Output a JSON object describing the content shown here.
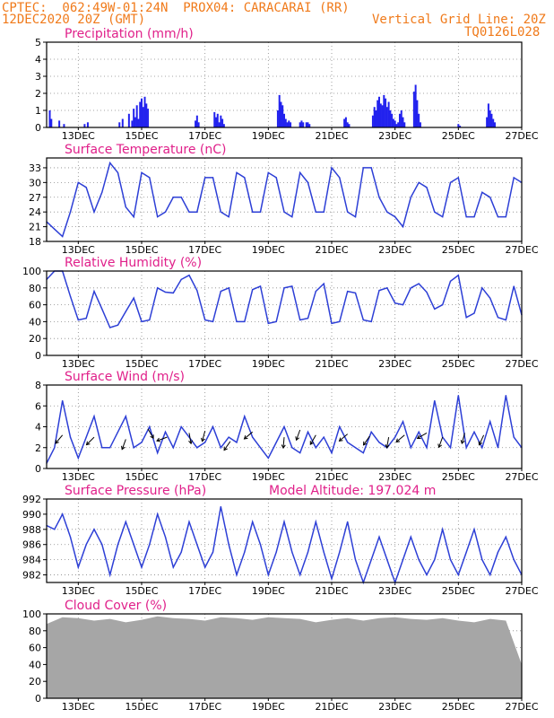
{
  "header": {
    "line1": "CPTEC:  062:49W-01:24N  PROX04: CARACARAI (RR)",
    "line2": "12DEC2020 20Z (GMT)",
    "vgrid": "Vertical Grid Line: 20Z",
    "code": "TQ0126L028",
    "model_altitude": "Model Altitude: 197.024 m"
  },
  "colors": {
    "header": "#f07a1a",
    "title": "#e0208a",
    "line": "#2d3fd6",
    "bar": "#2222ee",
    "cloud": "#a6a6a6",
    "grid": "#888888"
  },
  "chart_data": [
    {
      "id": "precip",
      "type": "bar",
      "title": "Precipitation (mm/h)",
      "ylim": [
        0,
        5
      ],
      "yticks": [
        0,
        1,
        2,
        3,
        4,
        5
      ],
      "xticks": [
        "13DEC",
        "15DEC",
        "17DEC",
        "19DEC",
        "21DEC",
        "23DEC",
        "25DEC",
        "27DEC"
      ],
      "x": [
        0.1,
        0.15,
        0.4,
        0.55,
        1.2,
        1.3,
        2.3,
        2.4,
        2.6,
        2.7,
        2.75,
        2.8,
        2.85,
        2.9,
        2.95,
        3.0,
        3.05,
        3.1,
        3.15,
        3.2,
        4.7,
        4.75,
        4.8,
        5.3,
        5.35,
        5.4,
        5.45,
        5.5,
        5.55,
        5.6,
        7.3,
        7.35,
        7.4,
        7.45,
        7.5,
        7.55,
        7.6,
        7.65,
        7.7,
        8.0,
        8.05,
        8.1,
        8.2,
        8.25,
        8.3,
        9.4,
        9.45,
        9.5,
        9.55,
        10.3,
        10.35,
        10.4,
        10.45,
        10.5,
        10.55,
        10.6,
        10.65,
        10.7,
        10.75,
        10.8,
        10.85,
        10.9,
        10.95,
        11.0,
        11.05,
        11.1,
        11.15,
        11.2,
        11.25,
        11.3,
        11.6,
        11.65,
        11.7,
        11.75,
        11.8,
        13.0,
        13.05,
        13.9,
        13.95,
        14.0,
        14.05,
        14.1,
        14.15
      ],
      "values": [
        1.0,
        0.5,
        0.4,
        0.2,
        0.2,
        0.3,
        0.3,
        0.5,
        0.8,
        0.4,
        1.1,
        0.6,
        1.3,
        0.5,
        1.5,
        1.7,
        1.2,
        1.8,
        1.4,
        1.1,
        0.4,
        0.7,
        0.3,
        0.9,
        0.6,
        0.8,
        0.3,
        0.7,
        0.5,
        0.2,
        1.0,
        1.9,
        1.5,
        1.3,
        0.8,
        0.5,
        0.3,
        0.4,
        0.3,
        0.3,
        0.4,
        0.3,
        0.3,
        0.3,
        0.2,
        0.5,
        0.6,
        0.3,
        0.2,
        0.7,
        1.2,
        1.0,
        1.6,
        1.8,
        1.4,
        1.3,
        1.9,
        1.7,
        1.2,
        1.5,
        1.0,
        0.8,
        0.5,
        0.4,
        0.2,
        0.3,
        0.8,
        1.0,
        0.6,
        0.3,
        2.1,
        2.5,
        1.6,
        0.8,
        0.3,
        0.2,
        0.1,
        0.6,
        1.4,
        1.0,
        0.8,
        0.5,
        0.3
      ]
    },
    {
      "id": "temp",
      "type": "line",
      "title": "Surface Temperature (nC)",
      "ylim": [
        18,
        35
      ],
      "yticks": [
        18,
        21,
        24,
        27,
        30,
        33
      ],
      "xticks": [
        "13DEC",
        "15DEC",
        "17DEC",
        "19DEC",
        "21DEC",
        "23DEC",
        "25DEC",
        "27DEC"
      ],
      "x": [
        0,
        0.25,
        0.5,
        0.75,
        1,
        1.25,
        1.5,
        1.75,
        2,
        2.25,
        2.5,
        2.75,
        3,
        3.25,
        3.5,
        3.75,
        4,
        4.25,
        4.5,
        4.75,
        5,
        5.25,
        5.5,
        5.75,
        6,
        6.25,
        6.5,
        6.75,
        7,
        7.25,
        7.5,
        7.75,
        8,
        8.25,
        8.5,
        8.75,
        9,
        9.25,
        9.5,
        9.75,
        10,
        10.25,
        10.5,
        10.75,
        11,
        11.25,
        11.5,
        11.75,
        12,
        12.25,
        12.5,
        12.75,
        13,
        13.25,
        13.5,
        13.75,
        14,
        14.25,
        14.5,
        14.75,
        15
      ],
      "y": [
        22,
        20.5,
        19,
        24,
        30,
        29,
        24,
        28,
        34,
        32,
        25,
        23,
        32,
        31,
        23,
        24,
        27,
        27,
        24,
        24,
        31,
        31,
        24,
        23,
        32,
        31,
        24,
        24,
        32,
        31,
        24,
        23,
        32,
        30,
        24,
        24,
        33,
        31,
        24,
        23,
        33,
        33,
        27,
        24,
        23,
        21,
        27,
        30,
        29,
        24,
        23,
        30,
        31,
        23,
        23,
        28,
        27,
        23,
        23,
        31,
        30
      ]
    },
    {
      "id": "rh",
      "type": "line",
      "title": "Relative Humidity (%)",
      "ylim": [
        0,
        100
      ],
      "yticks": [
        0,
        20,
        40,
        60,
        80,
        100
      ],
      "xticks": [
        "13DEC",
        "15DEC",
        "17DEC",
        "19DEC",
        "21DEC",
        "23DEC",
        "25DEC",
        "27DEC"
      ],
      "x": [
        0,
        0.25,
        0.5,
        0.75,
        1,
        1.25,
        1.5,
        1.75,
        2,
        2.25,
        2.5,
        2.75,
        3,
        3.25,
        3.5,
        3.75,
        4,
        4.25,
        4.5,
        4.75,
        5,
        5.25,
        5.5,
        5.75,
        6,
        6.25,
        6.5,
        6.75,
        7,
        7.25,
        7.5,
        7.75,
        8,
        8.25,
        8.5,
        8.75,
        9,
        9.25,
        9.5,
        9.75,
        10,
        10.25,
        10.5,
        10.75,
        11,
        11.25,
        11.5,
        11.75,
        12,
        12.25,
        12.5,
        12.75,
        13,
        13.25,
        13.5,
        13.75,
        14,
        14.25,
        14.5,
        14.75,
        15
      ],
      "y": [
        90,
        100,
        100,
        70,
        42,
        44,
        76,
        55,
        33,
        36,
        52,
        68,
        40,
        42,
        80,
        75,
        74,
        90,
        95,
        77,
        42,
        40,
        76,
        80,
        40,
        40,
        78,
        82,
        38,
        40,
        80,
        82,
        42,
        44,
        76,
        85,
        38,
        40,
        76,
        74,
        42,
        40,
        77,
        80,
        62,
        60,
        80,
        85,
        75,
        55,
        60,
        88,
        95,
        45,
        50,
        80,
        68,
        45,
        42,
        82,
        48
      ]
    },
    {
      "id": "wind",
      "type": "line",
      "title": "Surface Wind (m/s)",
      "ylim": [
        0,
        8
      ],
      "yticks": [
        0,
        2,
        4,
        6,
        8
      ],
      "xticks": [
        "13DEC",
        "15DEC",
        "17DEC",
        "19DEC",
        "21DEC",
        "23DEC",
        "25DEC",
        "27DEC"
      ],
      "x": [
        0,
        0.25,
        0.5,
        0.75,
        1,
        1.25,
        1.5,
        1.75,
        2,
        2.25,
        2.5,
        2.75,
        3,
        3.25,
        3.5,
        3.75,
        4,
        4.25,
        4.5,
        4.75,
        5,
        5.25,
        5.5,
        5.75,
        6,
        6.25,
        6.5,
        6.75,
        7,
        7.25,
        7.5,
        7.75,
        8,
        8.25,
        8.5,
        8.75,
        9,
        9.25,
        9.5,
        9.75,
        10,
        10.25,
        10.5,
        10.75,
        11,
        11.25,
        11.5,
        11.75,
        12,
        12.25,
        12.5,
        12.75,
        13,
        13.25,
        13.5,
        13.75,
        14,
        14.25,
        14.5,
        14.75,
        15
      ],
      "y": [
        0.5,
        2,
        6.5,
        3,
        1,
        3,
        5,
        2,
        2,
        3.5,
        5,
        2,
        2.5,
        4,
        1.5,
        3.5,
        2,
        4,
        3,
        2,
        2.5,
        4,
        2,
        3,
        2.5,
        5,
        3,
        2,
        1,
        2.5,
        4,
        2,
        1.5,
        3.5,
        2,
        3,
        1.5,
        4,
        2.5,
        2,
        1.5,
        3.5,
        2.5,
        2,
        3,
        4.5,
        2,
        3.5,
        2,
        6.5,
        3,
        2,
        7,
        2,
        3.5,
        2,
        4.5,
        2,
        7,
        3,
        2
      ],
      "arrows": [
        [
          0.5,
          3.2,
          220
        ],
        [
          1.5,
          3.0,
          225
        ],
        [
          2.5,
          2.8,
          200
        ],
        [
          3.2,
          3.8,
          150
        ],
        [
          3.8,
          3.0,
          250
        ],
        [
          4.5,
          3.4,
          170
        ],
        [
          5.0,
          3.6,
          195
        ],
        [
          5.8,
          2.6,
          215
        ],
        [
          6.5,
          3.5,
          230
        ],
        [
          7.5,
          3.0,
          185
        ],
        [
          8.0,
          3.7,
          200
        ],
        [
          8.5,
          3.2,
          210
        ],
        [
          9.5,
          3.3,
          230
        ],
        [
          10.2,
          3.1,
          215
        ],
        [
          10.8,
          3.0,
          190
        ],
        [
          11.3,
          3.2,
          230
        ],
        [
          12.0,
          3.4,
          240
        ],
        [
          12.5,
          3.0,
          200
        ],
        [
          13.2,
          3.4,
          195
        ],
        [
          13.8,
          3.2,
          205
        ]
      ]
    },
    {
      "id": "pres",
      "type": "line",
      "title": "Surface Pressure (hPa)",
      "ylim": [
        981,
        992
      ],
      "yticks": [
        982,
        984,
        986,
        988,
        990,
        992
      ],
      "xticks": [
        "13DEC",
        "15DEC",
        "17DEC",
        "19DEC",
        "21DEC",
        "23DEC",
        "25DEC",
        "27DEC"
      ],
      "x": [
        0,
        0.25,
        0.5,
        0.75,
        1,
        1.25,
        1.5,
        1.75,
        2,
        2.25,
        2.5,
        2.75,
        3,
        3.25,
        3.5,
        3.75,
        4,
        4.25,
        4.5,
        4.75,
        5,
        5.25,
        5.5,
        5.75,
        6,
        6.25,
        6.5,
        6.75,
        7,
        7.25,
        7.5,
        7.75,
        8,
        8.25,
        8.5,
        8.75,
        9,
        9.25,
        9.5,
        9.75,
        10,
        10.25,
        10.5,
        10.75,
        11,
        11.25,
        11.5,
        11.75,
        12,
        12.25,
        12.5,
        12.75,
        13,
        13.25,
        13.5,
        13.75,
        14,
        14.25,
        14.5,
        14.75,
        15
      ],
      "y": [
        988.5,
        988,
        990,
        987,
        983,
        986,
        988,
        986,
        982,
        986,
        989,
        986,
        983,
        986,
        990,
        987,
        983,
        985,
        989,
        986,
        983,
        985,
        991,
        986,
        982,
        985,
        989,
        986,
        982,
        985,
        989,
        985,
        982,
        985,
        989,
        985,
        981.5,
        985,
        989,
        984,
        981,
        984,
        987,
        984,
        981,
        984,
        987,
        984,
        982,
        984,
        988,
        984,
        982,
        985,
        988,
        984,
        982,
        985,
        987,
        984,
        982
      ]
    },
    {
      "id": "cloud",
      "type": "bar",
      "title": "Cloud Cover (%)",
      "ylim": [
        0,
        100
      ],
      "yticks": [
        0,
        20,
        40,
        60,
        80,
        100
      ],
      "xticks": [
        "13DEC",
        "15DEC",
        "17DEC",
        "19DEC",
        "21DEC",
        "23DEC",
        "25DEC",
        "27DEC"
      ],
      "x": [
        0,
        0.5,
        1,
        1.5,
        2,
        2.5,
        3,
        3.5,
        4,
        4.5,
        5,
        5.5,
        6,
        6.5,
        7,
        7.5,
        8,
        8.5,
        9,
        9.5,
        10,
        10.5,
        11,
        11.5,
        12,
        12.5,
        13,
        13.5,
        14,
        14.5,
        15
      ],
      "values": [
        88,
        96,
        95,
        92,
        94,
        90,
        93,
        97,
        95,
        94,
        92,
        96,
        95,
        93,
        96,
        95,
        94,
        90,
        93,
        95,
        92,
        95,
        96,
        94,
        93,
        95,
        92,
        90,
        94,
        92,
        40
      ]
    }
  ]
}
